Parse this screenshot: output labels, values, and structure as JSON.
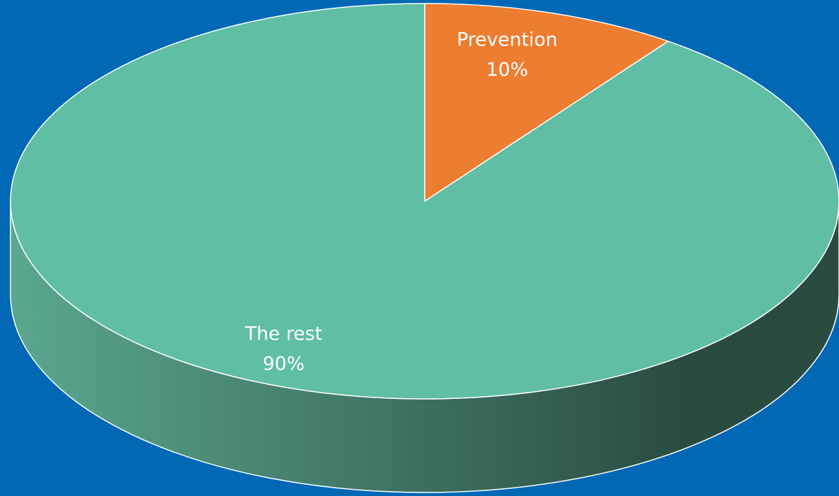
{
  "chart_data": {
    "type": "pie",
    "style": "3d",
    "categories": [
      "Prevention",
      "The rest"
    ],
    "values": [
      10,
      90
    ],
    "labels": [
      {
        "name": "Prevention",
        "value": "10%"
      },
      {
        "name": "The rest",
        "value": "90%"
      }
    ],
    "title": "",
    "legend": "none",
    "colors": {
      "background": "#0068b5",
      "Prevention": "#ed7d31",
      "The rest": "#60bea5",
      "side_light": "#5aa78f",
      "side_dark": "#2a4b40",
      "edge": "#ffffff"
    }
  }
}
